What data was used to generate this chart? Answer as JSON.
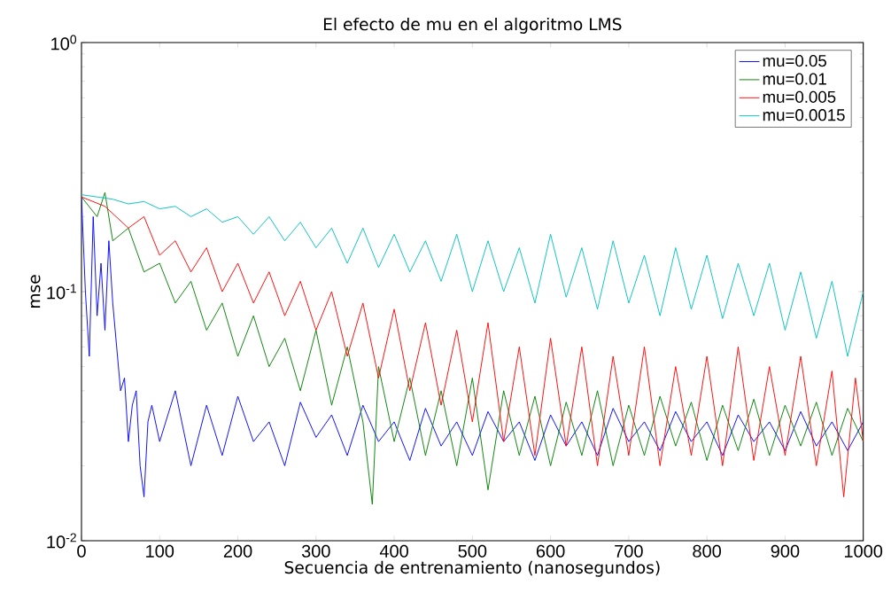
{
  "chart_data": {
    "type": "line",
    "title": "El efecto de mu en el algoritmo LMS",
    "xlabel": "Secuencia de entrenamiento (nanosegundos)",
    "ylabel": "mse",
    "log": "y",
    "xlim": [
      0,
      1000
    ],
    "xticks": [
      0,
      100,
      200,
      300,
      400,
      500,
      600,
      700,
      800,
      900,
      1000
    ],
    "ylim": [
      0.01,
      1
    ],
    "yticks": [
      {
        "value": 0.01,
        "label": "10$^{-2}$"
      },
      {
        "value": 0.1,
        "label": "10$^{-1}$"
      },
      {
        "value": 1,
        "label": "10$^{0}$"
      }
    ],
    "legend": "top right",
    "line_style": "solid",
    "series": [
      {
        "name": "mu=0.05",
        "color": "#0000ff",
        "x": [
          0,
          5,
          10,
          15,
          20,
          25,
          30,
          35,
          40,
          45,
          50,
          55,
          60,
          65,
          70,
          75,
          80,
          85,
          90,
          100,
          120,
          140,
          160,
          180,
          200,
          220,
          240,
          260,
          280,
          300,
          320,
          340,
          360,
          380,
          400,
          420,
          440,
          460,
          480,
          500,
          520,
          540,
          560,
          580,
          600,
          620,
          640,
          660,
          680,
          700,
          720,
          740,
          760,
          780,
          800,
          820,
          840,
          860,
          880,
          900,
          920,
          940,
          960,
          980,
          1000
        ],
        "values": [
          0.24,
          0.1,
          0.055,
          0.2,
          0.08,
          0.13,
          0.07,
          0.16,
          0.09,
          0.06,
          0.04,
          0.045,
          0.025,
          0.035,
          0.04,
          0.02,
          0.015,
          0.03,
          0.035,
          0.025,
          0.04,
          0.02,
          0.035,
          0.022,
          0.038,
          0.025,
          0.03,
          0.02,
          0.036,
          0.026,
          0.032,
          0.022,
          0.035,
          0.025,
          0.03,
          0.021,
          0.034,
          0.024,
          0.03,
          0.022,
          0.033,
          0.025,
          0.03,
          0.021,
          0.032,
          0.024,
          0.03,
          0.022,
          0.034,
          0.025,
          0.03,
          0.023,
          0.033,
          0.025,
          0.03,
          0.022,
          0.032,
          0.025,
          0.03,
          0.023,
          0.033,
          0.024,
          0.03,
          0.023,
          0.03
        ]
      },
      {
        "name": "mu=0.01",
        "color": "#008000",
        "x": [
          0,
          20,
          30,
          40,
          60,
          80,
          100,
          120,
          140,
          160,
          180,
          200,
          220,
          240,
          260,
          280,
          300,
          320,
          340,
          360,
          372,
          380,
          400,
          420,
          440,
          460,
          480,
          500,
          520,
          540,
          560,
          580,
          600,
          620,
          640,
          660,
          680,
          700,
          720,
          740,
          760,
          780,
          800,
          820,
          840,
          860,
          880,
          900,
          920,
          940,
          960,
          980,
          1000
        ],
        "values": [
          0.24,
          0.2,
          0.25,
          0.16,
          0.18,
          0.12,
          0.13,
          0.09,
          0.11,
          0.07,
          0.09,
          0.055,
          0.08,
          0.05,
          0.065,
          0.04,
          0.07,
          0.035,
          0.06,
          0.03,
          0.014,
          0.05,
          0.025,
          0.045,
          0.022,
          0.04,
          0.02,
          0.045,
          0.016,
          0.04,
          0.022,
          0.038,
          0.02,
          0.036,
          0.022,
          0.04,
          0.02,
          0.035,
          0.022,
          0.038,
          0.024,
          0.036,
          0.021,
          0.035,
          0.023,
          0.037,
          0.022,
          0.035,
          0.024,
          0.036,
          0.022,
          0.034,
          0.025
        ]
      },
      {
        "name": "mu=0.005",
        "color": "#ff0000",
        "x": [
          0,
          30,
          60,
          80,
          100,
          120,
          140,
          160,
          180,
          200,
          220,
          240,
          260,
          280,
          300,
          320,
          340,
          360,
          380,
          400,
          420,
          440,
          460,
          480,
          500,
          520,
          540,
          560,
          580,
          600,
          620,
          640,
          660,
          680,
          700,
          720,
          740,
          760,
          780,
          800,
          820,
          840,
          860,
          880,
          900,
          920,
          940,
          960,
          975,
          990,
          1000
        ],
        "values": [
          0.24,
          0.22,
          0.18,
          0.2,
          0.14,
          0.16,
          0.12,
          0.15,
          0.1,
          0.13,
          0.09,
          0.12,
          0.08,
          0.11,
          0.07,
          0.1,
          0.055,
          0.09,
          0.045,
          0.085,
          0.04,
          0.075,
          0.035,
          0.07,
          0.03,
          0.075,
          0.025,
          0.06,
          0.022,
          0.065,
          0.024,
          0.06,
          0.02,
          0.055,
          0.022,
          0.06,
          0.02,
          0.05,
          0.022,
          0.055,
          0.02,
          0.06,
          0.021,
          0.05,
          0.022,
          0.055,
          0.02,
          0.048,
          0.015,
          0.045,
          0.025
        ]
      },
      {
        "name": "mu=0.0015",
        "color": "#00bfbf",
        "x": [
          0,
          20,
          40,
          60,
          80,
          100,
          120,
          140,
          160,
          180,
          200,
          220,
          240,
          260,
          280,
          300,
          320,
          340,
          360,
          380,
          400,
          420,
          440,
          460,
          480,
          500,
          520,
          540,
          560,
          580,
          600,
          620,
          640,
          660,
          680,
          700,
          720,
          740,
          760,
          780,
          800,
          820,
          840,
          860,
          880,
          900,
          920,
          940,
          960,
          980,
          1000
        ],
        "values": [
          0.245,
          0.24,
          0.235,
          0.225,
          0.23,
          0.215,
          0.22,
          0.2,
          0.215,
          0.19,
          0.2,
          0.17,
          0.2,
          0.16,
          0.19,
          0.15,
          0.18,
          0.13,
          0.18,
          0.125,
          0.17,
          0.12,
          0.16,
          0.11,
          0.17,
          0.1,
          0.16,
          0.1,
          0.15,
          0.09,
          0.17,
          0.095,
          0.15,
          0.085,
          0.16,
          0.09,
          0.14,
          0.08,
          0.15,
          0.085,
          0.14,
          0.078,
          0.13,
          0.08,
          0.13,
          0.07,
          0.12,
          0.065,
          0.11,
          0.055,
          0.1
        ]
      }
    ]
  }
}
